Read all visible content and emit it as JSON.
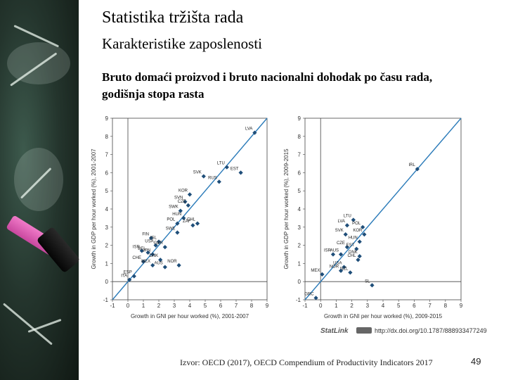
{
  "slide": {
    "title": "Statistika tržišta rada",
    "subtitle": "Karakteristike zaposlenosti",
    "heading": "Bruto domaći proizvod i bruto nacionalni dohodak po času rada, godišnja stopa rasta",
    "source": "Izvor: OECD (2017), OECD Compendium of Productivity Indicators 2017",
    "page_number": "49",
    "statlink_logo": "StatLink",
    "statlink_url": "http://dx.doi.org/10.1787/888933477249"
  },
  "colors": {
    "marker": "#1f4e79",
    "diagonal": "#2b7bb9",
    "axis": "#444444"
  },
  "chart_data": [
    {
      "type": "scatter",
      "xlabel": "Growth in GNI per hour worked (%), 2001-2007",
      "ylabel": "Growth in GDP per hour worked (%), 2001-2007",
      "xlim": [
        -1,
        9
      ],
      "ylim": [
        -1,
        9
      ],
      "xticks": [
        "-1",
        "0",
        "1",
        "2",
        "3",
        "4",
        "5",
        "6",
        "7",
        "8",
        "9"
      ],
      "yticks": [
        "-1",
        "0",
        "1",
        "2",
        "3",
        "4",
        "5",
        "6",
        "7",
        "8",
        "9"
      ],
      "grid": false,
      "reference_line": "y = x",
      "points": [
        {
          "label": "LVA",
          "x": 8.2,
          "y": 8.2
        },
        {
          "label": "LTU",
          "x": 6.4,
          "y": 6.3
        },
        {
          "label": "EST",
          "x": 7.3,
          "y": 6.0
        },
        {
          "label": "SVK",
          "x": 4.9,
          "y": 5.8
        },
        {
          "label": "RUS",
          "x": 5.9,
          "y": 5.5
        },
        {
          "label": "KOR",
          "x": 4.0,
          "y": 4.8
        },
        {
          "label": "SVN",
          "x": 3.7,
          "y": 4.4
        },
        {
          "label": "CZE",
          "x": 3.9,
          "y": 4.2
        },
        {
          "label": "SWK",
          "x": 3.4,
          "y": 3.9
        },
        {
          "label": "HUN",
          "x": 3.6,
          "y": 3.5
        },
        {
          "label": "POL",
          "x": 3.2,
          "y": 3.2
        },
        {
          "label": "CHL",
          "x": 4.5,
          "y": 3.2
        },
        {
          "label": "ZAF",
          "x": 4.2,
          "y": 3.1
        },
        {
          "label": "SWE",
          "x": 3.2,
          "y": 2.7
        },
        {
          "label": "FIN",
          "x": 1.5,
          "y": 2.4
        },
        {
          "label": "ISL",
          "x": 2.0,
          "y": 2.2
        },
        {
          "label": "USA",
          "x": 1.8,
          "y": 2.0
        },
        {
          "label": "GBR",
          "x": 2.4,
          "y": 1.9
        },
        {
          "label": "ISR",
          "x": 0.9,
          "y": 1.7
        },
        {
          "label": "BEL",
          "x": 1.3,
          "y": 1.6
        },
        {
          "label": "JPN",
          "x": 1.6,
          "y": 1.5
        },
        {
          "label": "DNK",
          "x": 2.1,
          "y": 1.2
        },
        {
          "label": "CHE",
          "x": 1.0,
          "y": 1.1
        },
        {
          "label": "MEX",
          "x": 1.6,
          "y": 0.9
        },
        {
          "label": "AUS",
          "x": 2.4,
          "y": 0.8
        },
        {
          "label": "NOR",
          "x": 3.3,
          "y": 0.9
        },
        {
          "label": "ITA",
          "x": 0.1,
          "y": 0.1
        },
        {
          "label": "ESP",
          "x": 0.4,
          "y": 0.3
        }
      ]
    },
    {
      "type": "scatter",
      "xlabel": "Growth in GNI per hour worked (%), 2009-2015",
      "ylabel": "Growth in GDP per hour worked (%), 2009-2015",
      "xlim": [
        -1,
        9
      ],
      "ylim": [
        -1,
        9
      ],
      "xticks": [
        "-1",
        "0",
        "1",
        "2",
        "3",
        "4",
        "5",
        "6",
        "7",
        "8",
        "9"
      ],
      "yticks": [
        "-1",
        "0",
        "1",
        "2",
        "3",
        "4",
        "5",
        "6",
        "7",
        "8",
        "9"
      ],
      "grid": false,
      "reference_line": "y = x",
      "points": [
        {
          "label": "IRL",
          "x": 6.2,
          "y": 6.2
        },
        {
          "label": "LTU",
          "x": 2.1,
          "y": 3.4
        },
        {
          "label": "LVA",
          "x": 1.7,
          "y": 3.1
        },
        {
          "label": "POL",
          "x": 2.7,
          "y": 3.0
        },
        {
          "label": "SVK",
          "x": 1.6,
          "y": 2.6
        },
        {
          "label": "KOR",
          "x": 2.8,
          "y": 2.6
        },
        {
          "label": "HUN",
          "x": 2.5,
          "y": 2.2
        },
        {
          "label": "CZE",
          "x": 1.7,
          "y": 1.9
        },
        {
          "label": "EST",
          "x": 2.3,
          "y": 1.8
        },
        {
          "label": "ISR",
          "x": 0.8,
          "y": 1.5
        },
        {
          "label": "AUS",
          "x": 1.3,
          "y": 1.5
        },
        {
          "label": "DNK",
          "x": 2.5,
          "y": 1.4
        },
        {
          "label": "CHL",
          "x": 2.4,
          "y": 1.2
        },
        {
          "label": "USA",
          "x": 1.5,
          "y": 0.8
        },
        {
          "label": "NOR",
          "x": 1.3,
          "y": 0.6
        },
        {
          "label": "NZL",
          "x": 1.9,
          "y": 0.5
        },
        {
          "label": "MEX",
          "x": 0.1,
          "y": 0.4
        },
        {
          "label": "SL",
          "x": 3.3,
          "y": -0.2
        },
        {
          "label": "GRC",
          "x": -0.3,
          "y": -0.9
        }
      ]
    }
  ]
}
